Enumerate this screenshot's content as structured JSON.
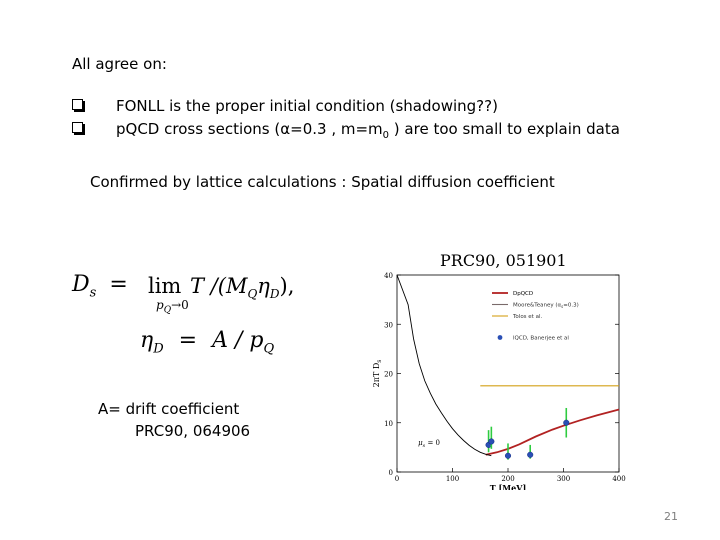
{
  "heading": "All  agree on:",
  "bullets": [
    {
      "text": "FONLL is the proper initial condition  (shadowing??)"
    },
    {
      "prefix": "pQCD cross sections  (α=0.3  , m=m",
      "sub": "0",
      "suffix": " ) are too small to explain data"
    }
  ],
  "confirmed": "Confirmed by lattice calculations : Spatial diffusion coefficient",
  "formula": {
    "ds_lhs": "D",
    "ds_lhs_sub": "s",
    "eq": "=",
    "lim": "lim",
    "lim_sub": "p",
    "lim_sub_q": "Q",
    "lim_arrow": "→0",
    "ratio": "T /(M",
    "ratio_sub_q": "Q",
    "eta": "η",
    "eta_sub": "D",
    "close": "),",
    "eta_lhs": "η",
    "eta_lhs_sub": "D",
    "eq2": "=",
    "a_over": "A / p",
    "a_over_sub": "Q"
  },
  "drift_note": "A= drift coefficient",
  "drift_ref": "PRC90, 064906",
  "prc_label": "PRC90, 051901",
  "plot": {
    "ylabel": "2πT D",
    "ylabel_sub": "s",
    "xlabel": "T [MeV]",
    "annotation": "μ",
    "annotation_sub": "s",
    "annotation_value": "= 0",
    "yticks": [
      "0",
      "10",
      "20",
      "30",
      "40"
    ],
    "xticks": [
      "0",
      "100",
      "200",
      "300",
      "400"
    ],
    "legend": [
      {
        "label": "DpQCD",
        "color": "#b22222"
      },
      {
        "label": "Moore&Teaney (α",
        "sub": "s",
        "suffix": "=0.3)",
        "color": "#7a6a6a"
      },
      {
        "label": "Tolos et al.",
        "color": "#d4a017"
      },
      {
        "label": "lQCD, Banerjee et al",
        "color": "#2a4fb5"
      }
    ]
  },
  "chart_data": {
    "type": "line",
    "xlabel": "T [MeV]",
    "ylabel": "2πT D_s",
    "xlim": [
      0,
      400
    ],
    "ylim": [
      0,
      40
    ],
    "series": [
      {
        "name": "DpQCD",
        "type": "line",
        "color": "#b22222",
        "x": [
          160,
          180,
          200,
          220,
          250,
          280,
          300,
          330,
          360,
          400
        ],
        "y": [
          3.5,
          4.0,
          4.7,
          5.6,
          7.2,
          8.6,
          9.4,
          10.5,
          11.5,
          12.7
        ]
      },
      {
        "name": "Moore&Teaney (α_s=0.3)",
        "type": "line",
        "color": "#000000",
        "x": [
          0,
          20,
          30,
          40,
          50,
          60,
          70,
          80,
          90,
          100,
          110,
          120,
          130,
          140,
          150,
          160,
          170
        ],
        "y": [
          40,
          34,
          27,
          22,
          18.5,
          16,
          13.8,
          12,
          10.3,
          8.8,
          7.5,
          6.4,
          5.4,
          4.6,
          4.0,
          3.6,
          3.3
        ]
      },
      {
        "name": "Tolos et al.",
        "type": "line",
        "color": "#d4a017",
        "x": [
          150,
          400
        ],
        "y": [
          17.5,
          17.5
        ]
      },
      {
        "name": "lQCD, Banerjee et al",
        "type": "scatter",
        "color": "#2a4fb5",
        "x": [
          165,
          170,
          200,
          240,
          305
        ],
        "y": [
          5.5,
          6.2,
          3.3,
          3.5,
          10.0
        ],
        "err": [
          [
            1.5,
            3.0
          ],
          [
            1.5,
            3.0
          ],
          [
            0.8,
            2.5
          ],
          [
            0.8,
            2.0
          ],
          [
            3.0,
            3.0
          ]
        ]
      }
    ]
  },
  "page_number": "21"
}
